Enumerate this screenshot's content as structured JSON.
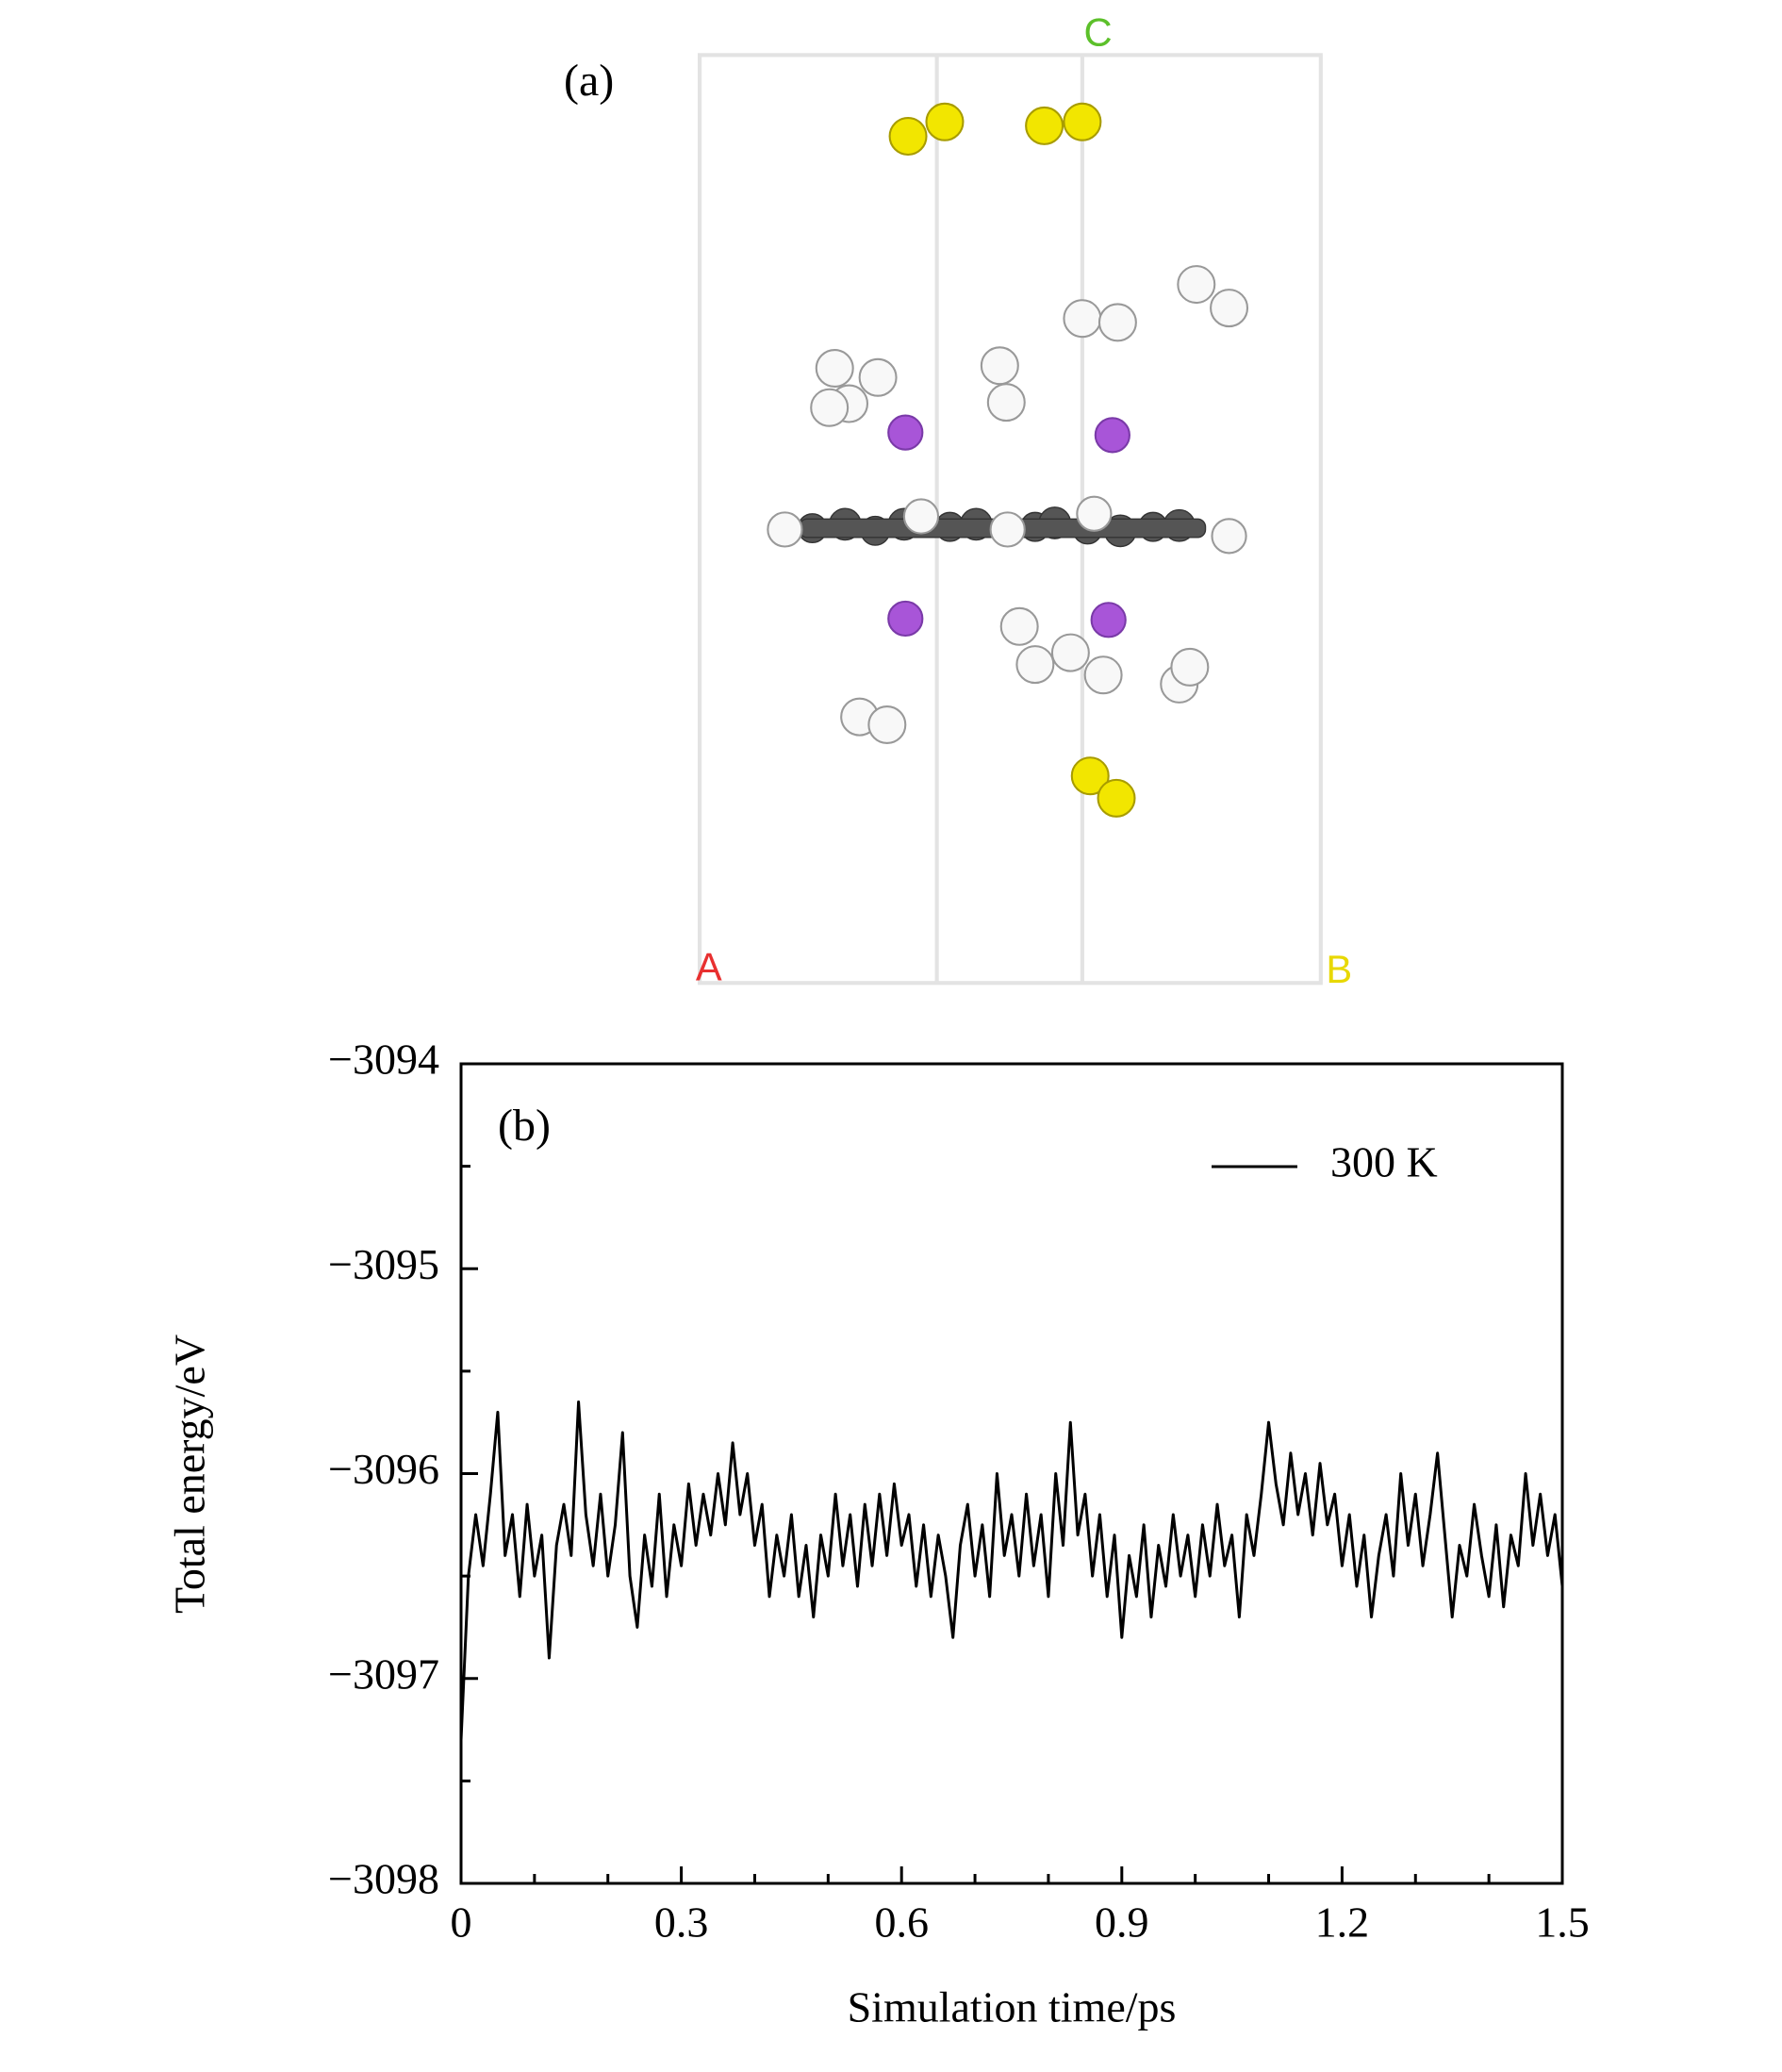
{
  "structure": {
    "label": "(a)",
    "axis_labels": [
      "A",
      "B",
      "C"
    ]
  },
  "chart_data": {
    "type": "line",
    "annotation": "(b)",
    "xlabel": "Simulation time/ps",
    "ylabel": "Total energy/eV",
    "xlim": [
      0,
      1.5
    ],
    "ylim": [
      -3098,
      -3094
    ],
    "xticks": [
      0,
      0.3,
      0.6,
      0.9,
      1.2,
      1.5
    ],
    "xticks_minor": [
      0.1,
      0.2,
      0.4,
      0.5,
      0.7,
      0.8,
      1.0,
      1.1,
      1.3,
      1.4
    ],
    "yticks": [
      {
        "value": -3098,
        "label": "−3098"
      },
      {
        "value": -3097,
        "label": "−3097"
      },
      {
        "value": -3096,
        "label": "−3096"
      },
      {
        "value": -3095,
        "label": "−3095"
      },
      {
        "value": -3094,
        "label": "−3094"
      }
    ],
    "yticks_minor": [
      -3097.5,
      -3096.5,
      -3095.5,
      -3094.5
    ],
    "legend": "upper right",
    "x": [
      0,
      0.01,
      0.02,
      0.03,
      0.04,
      0.05,
      0.06,
      0.07,
      0.08,
      0.09,
      0.1,
      0.11,
      0.12,
      0.13,
      0.14,
      0.15,
      0.16,
      0.17,
      0.18,
      0.19,
      0.2,
      0.21,
      0.22,
      0.23,
      0.24,
      0.25,
      0.26,
      0.27,
      0.28,
      0.29,
      0.3,
      0.31,
      0.32,
      0.33,
      0.34,
      0.35,
      0.36,
      0.37,
      0.38,
      0.39,
      0.4,
      0.41,
      0.42,
      0.43,
      0.44,
      0.45,
      0.46,
      0.47,
      0.48,
      0.49,
      0.5,
      0.51,
      0.52,
      0.53,
      0.54,
      0.55,
      0.56,
      0.57,
      0.58,
      0.59,
      0.6,
      0.61,
      0.62,
      0.63,
      0.64,
      0.65,
      0.66,
      0.67,
      0.68,
      0.69,
      0.7,
      0.71,
      0.72,
      0.73,
      0.74,
      0.75,
      0.76,
      0.77,
      0.78,
      0.79,
      0.8,
      0.81,
      0.82,
      0.83,
      0.84,
      0.85,
      0.86,
      0.87,
      0.88,
      0.89,
      0.9,
      0.91,
      0.92,
      0.93,
      0.94,
      0.95,
      0.96,
      0.97,
      0.98,
      0.99,
      1.0,
      1.01,
      1.02,
      1.03,
      1.04,
      1.05,
      1.06,
      1.07,
      1.08,
      1.09,
      1.1,
      1.11,
      1.12,
      1.13,
      1.14,
      1.15,
      1.16,
      1.17,
      1.18,
      1.19,
      1.2,
      1.21,
      1.22,
      1.23,
      1.24,
      1.25,
      1.26,
      1.27,
      1.28,
      1.29,
      1.3,
      1.31,
      1.32,
      1.33,
      1.34,
      1.35,
      1.36,
      1.37,
      1.38,
      1.39,
      1.4,
      1.41,
      1.42,
      1.43,
      1.44,
      1.45,
      1.46,
      1.47,
      1.48,
      1.49,
      1.5
    ],
    "series": [
      {
        "name": "300 K",
        "color": "#000000",
        "values": [
          -3097.3,
          -3096.5,
          -3096.2,
          -3096.45,
          -3096.1,
          -3095.7,
          -3096.4,
          -3096.2,
          -3096.6,
          -3096.15,
          -3096.5,
          -3096.3,
          -3096.9,
          -3096.35,
          -3096.15,
          -3096.4,
          -3095.65,
          -3096.2,
          -3096.45,
          -3096.1,
          -3096.5,
          -3096.25,
          -3095.8,
          -3096.5,
          -3096.75,
          -3096.3,
          -3096.55,
          -3096.1,
          -3096.6,
          -3096.25,
          -3096.45,
          -3096.05,
          -3096.35,
          -3096.1,
          -3096.3,
          -3096.0,
          -3096.25,
          -3095.85,
          -3096.2,
          -3096.0,
          -3096.35,
          -3096.15,
          -3096.6,
          -3096.3,
          -3096.5,
          -3096.2,
          -3096.6,
          -3096.35,
          -3096.7,
          -3096.3,
          -3096.5,
          -3096.1,
          -3096.45,
          -3096.2,
          -3096.55,
          -3096.15,
          -3096.45,
          -3096.1,
          -3096.4,
          -3096.05,
          -3096.35,
          -3096.2,
          -3096.55,
          -3096.25,
          -3096.6,
          -3096.3,
          -3096.5,
          -3096.8,
          -3096.35,
          -3096.15,
          -3096.5,
          -3096.25,
          -3096.6,
          -3096.0,
          -3096.4,
          -3096.2,
          -3096.5,
          -3096.1,
          -3096.45,
          -3096.2,
          -3096.6,
          -3096.0,
          -3096.35,
          -3095.75,
          -3096.3,
          -3096.1,
          -3096.5,
          -3096.2,
          -3096.6,
          -3096.3,
          -3096.8,
          -3096.4,
          -3096.6,
          -3096.25,
          -3096.7,
          -3096.35,
          -3096.55,
          -3096.2,
          -3096.5,
          -3096.3,
          -3096.6,
          -3096.25,
          -3096.5,
          -3096.15,
          -3096.45,
          -3096.3,
          -3096.7,
          -3096.2,
          -3096.4,
          -3096.1,
          -3095.75,
          -3096.05,
          -3096.25,
          -3095.9,
          -3096.2,
          -3096.0,
          -3096.3,
          -3095.95,
          -3096.25,
          -3096.1,
          -3096.45,
          -3096.2,
          -3096.55,
          -3096.3,
          -3096.7,
          -3096.4,
          -3096.2,
          -3096.5,
          -3096.0,
          -3096.35,
          -3096.1,
          -3096.45,
          -3096.2,
          -3095.9,
          -3096.3,
          -3096.7,
          -3096.35,
          -3096.5,
          -3096.15,
          -3096.4,
          -3096.6,
          -3096.25,
          -3096.65,
          -3096.3,
          -3096.45,
          -3096.0,
          -3096.35,
          -3096.1,
          -3096.4,
          -3096.2,
          -3096.55
        ]
      }
    ]
  }
}
